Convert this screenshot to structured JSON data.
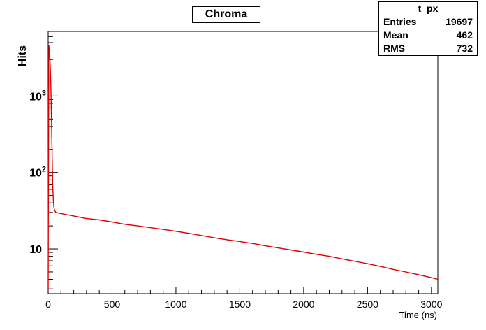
{
  "chart_data": {
    "type": "line",
    "title": "Chroma",
    "xlabel": "Time (ns)",
    "ylabel": "Hits",
    "xlim": [
      0,
      3050
    ],
    "ylim": [
      2.6,
      7000
    ],
    "yscale": "log",
    "x_ticks": [
      0,
      500,
      1000,
      1500,
      2000,
      2500,
      3000
    ],
    "y_ticks": [
      {
        "value": 10,
        "base": "10",
        "exp": ""
      },
      {
        "value": 100,
        "base": "10",
        "exp": "2"
      },
      {
        "value": 1000,
        "base": "10",
        "exp": "3"
      }
    ],
    "grid": false,
    "series": [
      {
        "color": "#dd0000",
        "x": [
          0,
          5,
          10,
          15,
          20,
          25,
          30,
          35,
          40,
          45,
          50,
          60,
          80,
          100,
          150,
          200,
          300,
          400,
          500,
          600,
          700,
          800,
          900,
          1000,
          1100,
          1200,
          1300,
          1400,
          1500,
          1600,
          1700,
          1800,
          1900,
          2000,
          2100,
          2200,
          2300,
          2400,
          2500,
          2600,
          2700,
          2800,
          2900,
          3000,
          3050
        ],
        "y": [
          3,
          4600,
          4000,
          2800,
          1500,
          600,
          200,
          70,
          45,
          35,
          32,
          30,
          29.5,
          29,
          28,
          27,
          25,
          24,
          22.5,
          21,
          20,
          19,
          18,
          17,
          16,
          15,
          14,
          13.2,
          12.5,
          11.8,
          11,
          10.3,
          9.7,
          9.1,
          8.5,
          8,
          7.4,
          6.9,
          6.4,
          5.9,
          5.4,
          5,
          4.6,
          4.2,
          4
        ]
      }
    ]
  },
  "stats": {
    "title": "t_px",
    "rows": [
      {
        "label": "Entries",
        "value": "19697"
      },
      {
        "label": "Mean",
        "value": "462"
      },
      {
        "label": "RMS",
        "value": "732"
      }
    ]
  }
}
